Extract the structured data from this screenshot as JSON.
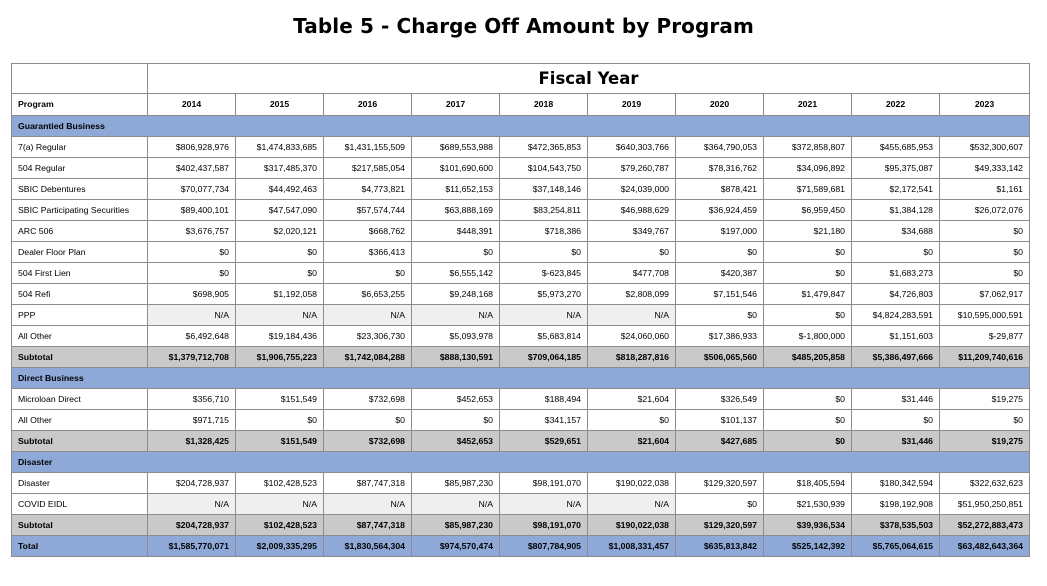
{
  "title": "Table 5 - Charge Off Amount by Program",
  "fiscal_year_label": "Fiscal Year",
  "program_header": "Program",
  "years": [
    "2014",
    "2015",
    "2016",
    "2017",
    "2018",
    "2019",
    "2020",
    "2021",
    "2022",
    "2023"
  ],
  "sections": [
    {
      "name": "Guarantied Business",
      "rows": [
        {
          "label": "7(a) Regular",
          "values": [
            "$806,928,976",
            "$1,474,833,685",
            "$1,431,155,509",
            "$689,553,988",
            "$472,365,853",
            "$640,303,766",
            "$364,790,053",
            "$372,858,807",
            "$455,685,953",
            "$532,300,607"
          ]
        },
        {
          "label": "504 Regular",
          "values": [
            "$402,437,587",
            "$317,485,370",
            "$217,585,054",
            "$101,690,600",
            "$104,543,750",
            "$79,260,787",
            "$78,316,762",
            "$34,096,892",
            "$95,375,087",
            "$49,333,142"
          ]
        },
        {
          "label": "SBIC Debentures",
          "values": [
            "$70,077,734",
            "$44,492,463",
            "$4,773,821",
            "$11,652,153",
            "$37,148,146",
            "$24,039,000",
            "$878,421",
            "$71,589,681",
            "$2,172,541",
            "$1,161"
          ]
        },
        {
          "label": "SBIC Participating Securities",
          "values": [
            "$89,400,101",
            "$47,547,090",
            "$57,574,744",
            "$63,888,169",
            "$83,254,811",
            "$46,988,629",
            "$36,924,459",
            "$6,959,450",
            "$1,384,128",
            "$26,072,076"
          ]
        },
        {
          "label": "ARC 506",
          "values": [
            "$3,676,757",
            "$2,020,121",
            "$668,762",
            "$448,391",
            "$718,386",
            "$349,767",
            "$197,000",
            "$21,180",
            "$34,688",
            "$0"
          ]
        },
        {
          "label": "Dealer Floor Plan",
          "values": [
            "$0",
            "$0",
            "$366,413",
            "$0",
            "$0",
            "$0",
            "$0",
            "$0",
            "$0",
            "$0"
          ]
        },
        {
          "label": "504 First Lien",
          "values": [
            "$0",
            "$0",
            "$0",
            "$6,555,142",
            "$-623,845",
            "$477,708",
            "$420,387",
            "$0",
            "$1,683,273",
            "$0"
          ]
        },
        {
          "label": "504 Refi",
          "values": [
            "$698,905",
            "$1,192,058",
            "$6,653,255",
            "$9,248,168",
            "$5,973,270",
            "$2,808,099",
            "$7,151,546",
            "$1,479,847",
            "$4,726,803",
            "$7,062,917"
          ]
        },
        {
          "label": "PPP",
          "values": [
            "N/A",
            "N/A",
            "N/A",
            "N/A",
            "N/A",
            "N/A",
            "$0",
            "$0",
            "$4,824,283,591",
            "$10,595,000,591"
          ]
        },
        {
          "label": "All Other",
          "values": [
            "$6,492,648",
            "$19,184,436",
            "$23,306,730",
            "$5,093,978",
            "$5,683,814",
            "$24,060,060",
            "$17,386,933",
            "$-1,800,000",
            "$1,151,603",
            "$-29,877"
          ]
        }
      ],
      "subtotal": {
        "label": "Subtotal",
        "values": [
          "$1,379,712,708",
          "$1,906,755,223",
          "$1,742,084,288",
          "$888,130,591",
          "$709,064,185",
          "$818,287,816",
          "$506,065,560",
          "$485,205,858",
          "$5,386,497,666",
          "$11,209,740,616"
        ]
      }
    },
    {
      "name": "Direct Business",
      "rows": [
        {
          "label": "Microloan Direct",
          "values": [
            "$356,710",
            "$151,549",
            "$732,698",
            "$452,653",
            "$188,494",
            "$21,604",
            "$326,549",
            "$0",
            "$31,446",
            "$19,275"
          ]
        },
        {
          "label": "All Other",
          "values": [
            "$971,715",
            "$0",
            "$0",
            "$0",
            "$341,157",
            "$0",
            "$101,137",
            "$0",
            "$0",
            "$0"
          ]
        }
      ],
      "subtotal": {
        "label": "Subtotal",
        "values": [
          "$1,328,425",
          "$151,549",
          "$732,698",
          "$452,653",
          "$529,651",
          "$21,604",
          "$427,685",
          "$0",
          "$31,446",
          "$19,275"
        ]
      }
    },
    {
      "name": "Disaster",
      "rows": [
        {
          "label": "Disaster",
          "values": [
            "$204,728,937",
            "$102,428,523",
            "$87,747,318",
            "$85,987,230",
            "$98,191,070",
            "$190,022,038",
            "$129,320,597",
            "$18,405,594",
            "$180,342,594",
            "$322,632,623"
          ]
        },
        {
          "label": "COVID EIDL",
          "values": [
            "N/A",
            "N/A",
            "N/A",
            "N/A",
            "N/A",
            "N/A",
            "$0",
            "$21,530,939",
            "$198,192,908",
            "$51,950,250,851"
          ]
        }
      ],
      "subtotal": {
        "label": "Subtotal",
        "values": [
          "$204,728,937",
          "$102,428,523",
          "$87,747,318",
          "$85,987,230",
          "$98,191,070",
          "$190,022,038",
          "$129,320,597",
          "$39,936,534",
          "$378,535,503",
          "$52,272,883,473"
        ]
      }
    }
  ],
  "total": {
    "label": "Total",
    "values": [
      "$1,585,770,071",
      "$2,009,335,295",
      "$1,830,564,304",
      "$974,570,474",
      "$807,784,905",
      "$1,008,331,457",
      "$635,813,842",
      "$525,142,392",
      "$5,765,064,615",
      "$63,482,643,364"
    ]
  },
  "colors": {
    "section_fill": "#8ea9d8",
    "subtotal_fill": "#c9c9c9",
    "na_fill": "#efefef"
  }
}
